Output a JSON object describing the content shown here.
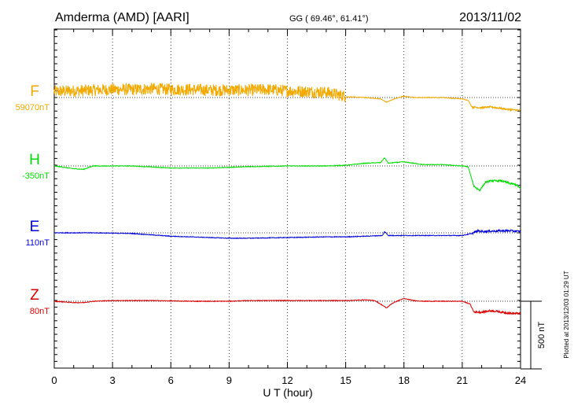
{
  "header": {
    "station": "Amderma (AMD)  [AARI]",
    "coords": "GG ( 69.46°,  61.41°)",
    "date": "2013/11/02"
  },
  "footer": {
    "plotted_at": "Plotted at 2013/12/03 01:29 UT"
  },
  "chart_data": {
    "type": "line",
    "title": "Amderma (AMD)  [AARI]",
    "xlabel": "U T (hour)",
    "xlim": [
      0,
      24
    ],
    "xticks": [
      0,
      3,
      6,
      9,
      12,
      15,
      18,
      21,
      24
    ],
    "x_minor_step": 1,
    "grid": "dotted vertical lines every 3 hours",
    "scale_bar": {
      "label": "500 nT",
      "value_nT": 500
    },
    "series": [
      {
        "name": "F",
        "baseline_label": "59070nT",
        "color": "#f2a900",
        "noise_until_hour": 15,
        "noise_amp_nT": 45,
        "x": [
          0,
          1,
          2,
          3,
          4,
          5,
          6,
          7,
          8,
          9,
          10,
          11,
          12,
          13,
          14,
          15,
          16,
          16.8,
          17.1,
          17.5,
          18,
          18.5,
          19,
          20,
          21,
          21.3,
          21.5,
          22,
          22.5,
          23,
          23.5,
          24
        ],
        "values": [
          40,
          45,
          50,
          55,
          55,
          60,
          55,
          55,
          50,
          50,
          50,
          55,
          45,
          40,
          35,
          5,
          0,
          -10,
          -35,
          -10,
          10,
          0,
          0,
          0,
          -10,
          -20,
          -70,
          -75,
          -70,
          -80,
          -90,
          -95
        ]
      },
      {
        "name": "H",
        "baseline_label": "-350nT",
        "color": "#00dd00",
        "x": [
          0,
          1,
          1.5,
          2,
          3,
          4,
          6,
          8,
          9,
          10,
          12,
          14,
          15,
          16,
          16.8,
          17,
          17.2,
          17.5,
          18,
          19,
          20,
          21,
          21.3,
          21.6,
          21.9,
          22.2,
          22.5,
          23,
          23.5,
          23.8,
          24
        ],
        "values": [
          0,
          -20,
          -25,
          0,
          0,
          0,
          -15,
          -15,
          -10,
          -5,
          0,
          0,
          5,
          20,
          25,
          60,
          20,
          25,
          30,
          10,
          10,
          0,
          -5,
          -150,
          -180,
          -120,
          -110,
          -110,
          -130,
          -140,
          -170
        ]
      },
      {
        "name": "E",
        "baseline_label": "110nT",
        "color": "#0000dd",
        "x": [
          0,
          2,
          4,
          6,
          8,
          9,
          10,
          12,
          14,
          15,
          16,
          16.9,
          17,
          17.2,
          18,
          19,
          20,
          21,
          21.5,
          21.8,
          22,
          23,
          23.5,
          24
        ],
        "values": [
          0,
          0,
          -5,
          -25,
          -35,
          -40,
          -40,
          -35,
          -30,
          -30,
          -25,
          -20,
          10,
          -20,
          -20,
          -20,
          -20,
          -20,
          -5,
          15,
          10,
          15,
          15,
          10
        ]
      },
      {
        "name": "Z",
        "baseline_label": "80nT",
        "color": "#dd0000",
        "x": [
          0,
          1,
          1.5,
          2,
          3,
          5,
          7,
          9,
          10,
          12,
          14,
          15,
          16,
          16.5,
          16.9,
          17.1,
          17.4,
          17.8,
          18,
          18.5,
          19,
          20,
          21,
          21.4,
          21.6,
          22,
          22.5,
          23,
          23.5,
          24
        ],
        "values": [
          0,
          -10,
          -10,
          0,
          5,
          5,
          0,
          0,
          5,
          5,
          5,
          5,
          10,
          5,
          -30,
          -50,
          -15,
          10,
          20,
          5,
          0,
          0,
          0,
          -20,
          -80,
          -80,
          -70,
          -80,
          -90,
          -90
        ]
      }
    ]
  }
}
